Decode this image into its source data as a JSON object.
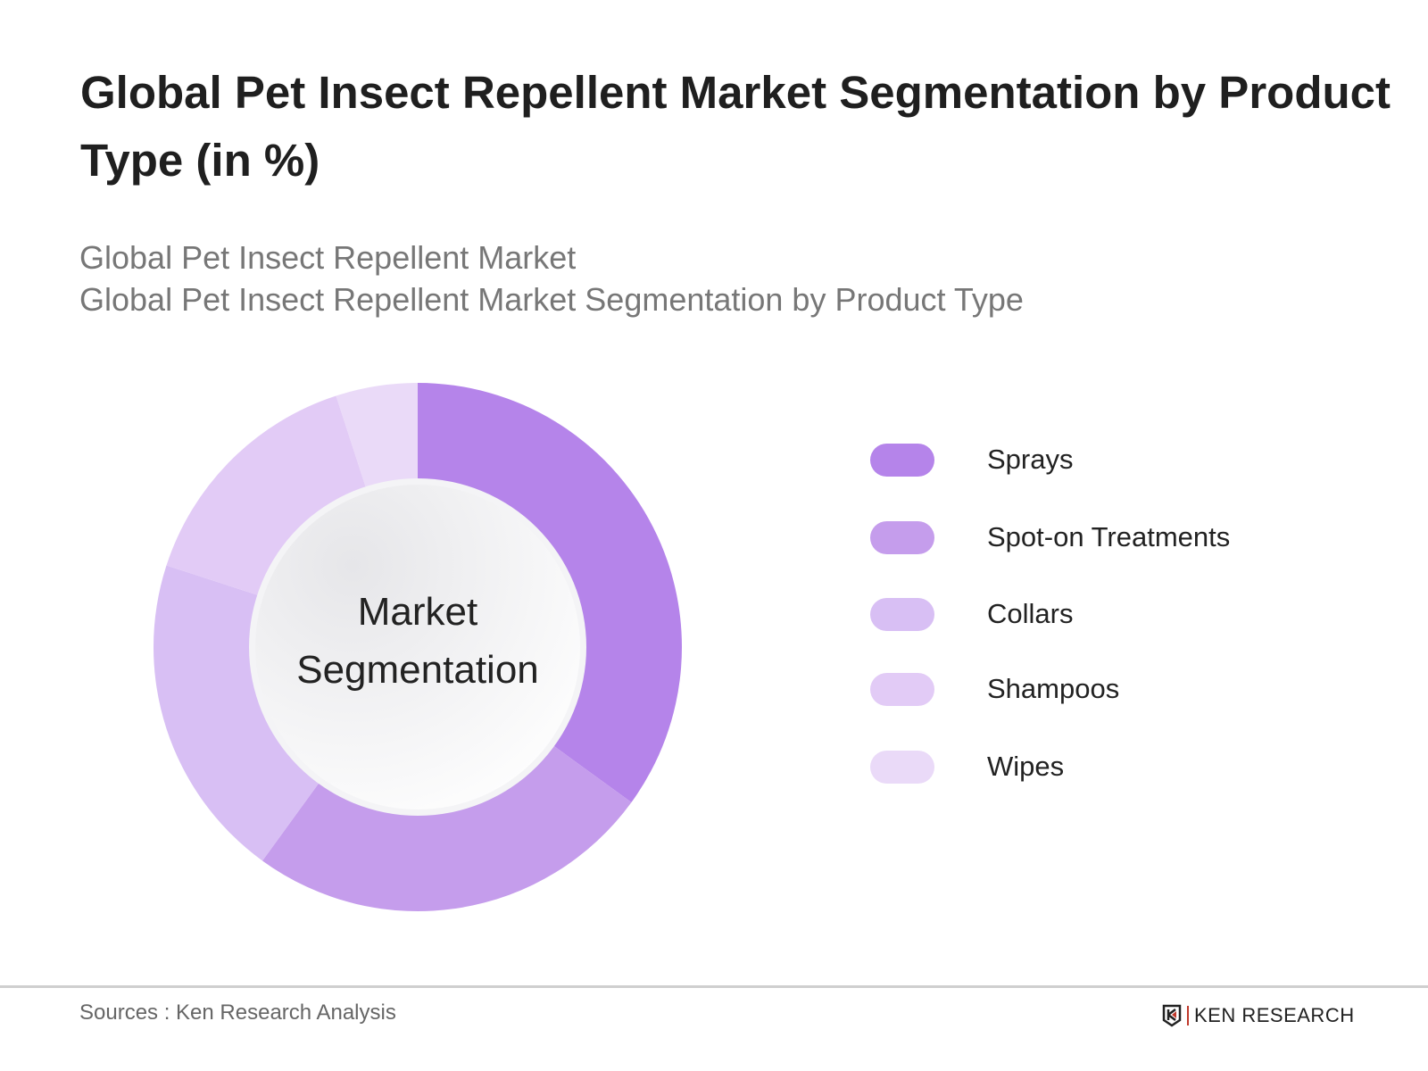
{
  "chart_data": {
    "type": "pie",
    "donut": true,
    "title": "Global Pet Insect Repellent Market Segmentation by Product Type (in %)",
    "subtitles": [
      "Global Pet Insect Repellent Market",
      "Global Pet Insect Repellent Market Segmentation by Product Type"
    ],
    "center_label": [
      "Market",
      "Segmentation"
    ],
    "categories": [
      "Sprays",
      "Spot-on Treatments",
      "Collars",
      "Shampoos",
      "Wipes"
    ],
    "values": [
      35,
      25,
      20,
      15,
      5
    ],
    "colors": [
      "#b584ea",
      "#c59dec",
      "#d8bff4",
      "#e2cbf6",
      "#eadaf8"
    ],
    "legend_position": "right"
  },
  "footer": {
    "source": "Sources : Ken Research Analysis",
    "logo_text": "KEN RESEARCH"
  }
}
